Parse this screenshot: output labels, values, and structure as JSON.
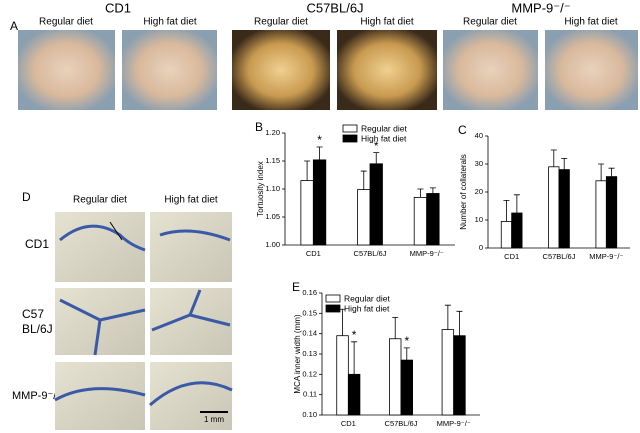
{
  "panel_a": {
    "label": "A",
    "strains": [
      {
        "name": "CD1",
        "photos": [
          "Regular diet",
          "High fat diet"
        ]
      },
      {
        "name": "C57BL/6J",
        "photos": [
          "Regular diet",
          "High fat diet"
        ]
      },
      {
        "name": "MMP-9⁻/⁻",
        "photos": [
          "Regular diet",
          "High fat diet"
        ]
      }
    ]
  },
  "panel_d": {
    "label": "D",
    "columns": [
      "Regular diet",
      "High fat diet"
    ],
    "rows": [
      [
        "CD1"
      ],
      [
        "C57",
        "BL/6J"
      ],
      [
        "MMP-9⁻/⁻"
      ]
    ],
    "scale_bar": "1 mm"
  },
  "chart_data": [
    {
      "type": "bar",
      "panel_label": "B",
      "ylabel": "Tortuosity index",
      "categories": [
        "CD1",
        "C57BL/6J",
        "MMP-9⁻/⁻"
      ],
      "series": [
        {
          "name": "Regular diet",
          "color": "#ffffff",
          "values": [
            1.115,
            1.099,
            1.085
          ],
          "errors": [
            0.035,
            0.033,
            0.015
          ]
        },
        {
          "name": "High fat diet",
          "color": "#000000",
          "values": [
            1.152,
            1.145,
            1.092
          ],
          "errors": [
            0.023,
            0.02,
            0.01
          ]
        }
      ],
      "ylim": [
        1.0,
        1.2
      ],
      "yticks": [
        {
          "value": 1.0,
          "label": "1.00"
        },
        1.05,
        {
          "value": 1.1,
          "label": "1.10"
        },
        1.15,
        {
          "value": 1.2,
          "label": "1.20"
        }
      ],
      "legend": "upper right",
      "annotations": [
        {
          "text": "*",
          "category": "CD1",
          "series": "High fat diet"
        },
        {
          "text": "*",
          "category": "C57BL/6J",
          "series": "High fat diet"
        }
      ]
    },
    {
      "type": "bar",
      "panel_label": "C",
      "ylabel": "Number of collaterals",
      "categories": [
        "CD1",
        "C57BL/6J",
        "MMP-9⁻/⁻"
      ],
      "series": [
        {
          "name": "Regular diet",
          "color": "#ffffff",
          "values": [
            9.5,
            29,
            24
          ],
          "errors": [
            7.5,
            6,
            6
          ]
        },
        {
          "name": "High fat diet",
          "color": "#000000",
          "values": [
            12.5,
            28,
            25.5
          ],
          "errors": [
            6.5,
            4,
            3
          ]
        }
      ],
      "ylim": [
        0,
        40
      ],
      "yticks": [
        0,
        10,
        20,
        30,
        40
      ]
    },
    {
      "type": "bar",
      "panel_label": "E",
      "ylabel": "MCA inner width (mm)",
      "categories": [
        "CD1",
        "C57BL/6J",
        "MMP-9⁻/⁻"
      ],
      "series": [
        {
          "name": "Regular diet",
          "color": "#ffffff",
          "values": [
            0.139,
            0.1375,
            0.142
          ],
          "errors": [
            0.013,
            0.0105,
            0.012
          ]
        },
        {
          "name": "High fat diet",
          "color": "#000000",
          "values": [
            0.12,
            0.127,
            0.139
          ],
          "errors": [
            0.016,
            0.006,
            0.012
          ]
        }
      ],
      "ylim": [
        0.1,
        0.16
      ],
      "yticks": [
        {
          "value": 0.1,
          "label": "0.10"
        },
        0.11,
        0.12,
        0.13,
        0.14,
        0.15,
        0.16
      ],
      "legend": "upper left",
      "annotations": [
        {
          "text": "*",
          "category": "CD1",
          "series": "High fat diet"
        },
        {
          "text": "*",
          "category": "C57BL/6J",
          "series": "High fat diet"
        }
      ]
    }
  ]
}
